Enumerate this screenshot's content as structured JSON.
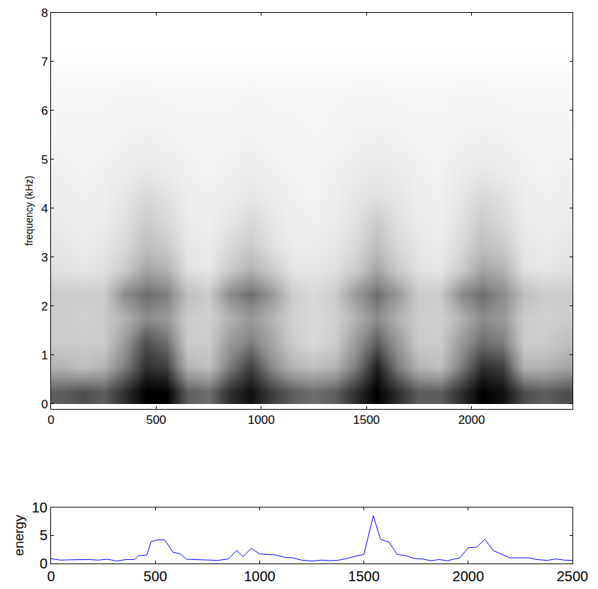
{
  "chart_data": [
    {
      "type": "heatmap",
      "ylabel": "frequency (kHz)",
      "x": [
        50,
        150,
        250,
        350,
        450,
        550,
        650,
        750,
        850,
        950,
        1050,
        1150,
        1250,
        1350,
        1450,
        1550,
        1650,
        1750,
        1850,
        1950,
        2050,
        2150,
        2250,
        2350,
        2450
      ],
      "y": [
        0.25,
        0.75,
        1.25,
        1.75,
        2.25,
        2.75,
        3.25,
        3.75,
        4.25,
        4.75,
        5.25,
        5.75,
        6.25,
        6.75,
        7.25,
        7.75
      ],
      "z": [
        [
          0.6,
          0.65,
          0.6,
          0.75,
          0.9,
          0.9,
          0.6,
          0.55,
          0.75,
          0.85,
          0.7,
          0.6,
          0.55,
          0.6,
          0.75,
          0.9,
          0.75,
          0.6,
          0.6,
          0.75,
          0.9,
          0.85,
          0.65,
          0.6,
          0.65
        ],
        [
          0.3,
          0.25,
          0.3,
          0.5,
          0.75,
          0.7,
          0.3,
          0.25,
          0.5,
          0.7,
          0.45,
          0.3,
          0.25,
          0.3,
          0.5,
          0.8,
          0.5,
          0.3,
          0.25,
          0.5,
          0.75,
          0.7,
          0.3,
          0.3,
          0.35
        ],
        [
          0.2,
          0.2,
          0.2,
          0.4,
          0.65,
          0.55,
          0.2,
          0.2,
          0.4,
          0.5,
          0.35,
          0.2,
          0.15,
          0.2,
          0.4,
          0.6,
          0.4,
          0.2,
          0.2,
          0.4,
          0.55,
          0.5,
          0.2,
          0.2,
          0.25
        ],
        [
          0.2,
          0.18,
          0.2,
          0.3,
          0.45,
          0.4,
          0.2,
          0.18,
          0.3,
          0.4,
          0.3,
          0.18,
          0.15,
          0.18,
          0.3,
          0.45,
          0.3,
          0.2,
          0.18,
          0.3,
          0.45,
          0.4,
          0.2,
          0.18,
          0.2
        ],
        [
          0.2,
          0.2,
          0.2,
          0.45,
          0.55,
          0.5,
          0.25,
          0.2,
          0.45,
          0.55,
          0.4,
          0.2,
          0.15,
          0.2,
          0.4,
          0.55,
          0.4,
          0.2,
          0.2,
          0.45,
          0.55,
          0.45,
          0.25,
          0.2,
          0.2
        ],
        [
          0.12,
          0.1,
          0.12,
          0.2,
          0.35,
          0.3,
          0.12,
          0.1,
          0.2,
          0.3,
          0.2,
          0.1,
          0.1,
          0.12,
          0.2,
          0.35,
          0.2,
          0.12,
          0.1,
          0.2,
          0.35,
          0.3,
          0.12,
          0.1,
          0.12
        ],
        [
          0.1,
          0.08,
          0.1,
          0.15,
          0.25,
          0.2,
          0.1,
          0.08,
          0.15,
          0.2,
          0.12,
          0.08,
          0.08,
          0.1,
          0.15,
          0.25,
          0.15,
          0.1,
          0.08,
          0.15,
          0.25,
          0.2,
          0.1,
          0.08,
          0.1
        ],
        [
          0.08,
          0.07,
          0.08,
          0.12,
          0.2,
          0.15,
          0.08,
          0.07,
          0.1,
          0.15,
          0.1,
          0.07,
          0.06,
          0.08,
          0.12,
          0.2,
          0.12,
          0.08,
          0.07,
          0.12,
          0.2,
          0.15,
          0.08,
          0.07,
          0.08
        ],
        [
          0.07,
          0.06,
          0.07,
          0.1,
          0.15,
          0.12,
          0.07,
          0.06,
          0.08,
          0.1,
          0.08,
          0.06,
          0.05,
          0.07,
          0.1,
          0.12,
          0.1,
          0.07,
          0.06,
          0.1,
          0.15,
          0.12,
          0.07,
          0.06,
          0.07
        ],
        [
          0.06,
          0.05,
          0.06,
          0.08,
          0.1,
          0.08,
          0.06,
          0.05,
          0.06,
          0.08,
          0.06,
          0.05,
          0.05,
          0.06,
          0.08,
          0.1,
          0.08,
          0.06,
          0.05,
          0.08,
          0.1,
          0.08,
          0.06,
          0.05,
          0.06
        ],
        [
          0.05,
          0.05,
          0.05,
          0.06,
          0.07,
          0.06,
          0.05,
          0.05,
          0.05,
          0.06,
          0.05,
          0.05,
          0.04,
          0.05,
          0.06,
          0.07,
          0.06,
          0.05,
          0.05,
          0.06,
          0.07,
          0.06,
          0.05,
          0.05,
          0.05
        ],
        [
          0.04,
          0.04,
          0.04,
          0.05,
          0.05,
          0.05,
          0.04,
          0.04,
          0.04,
          0.05,
          0.04,
          0.04,
          0.03,
          0.04,
          0.05,
          0.05,
          0.05,
          0.04,
          0.04,
          0.05,
          0.05,
          0.05,
          0.04,
          0.04,
          0.04
        ],
        [
          0.03,
          0.03,
          0.03,
          0.04,
          0.04,
          0.03,
          0.03,
          0.03,
          0.03,
          0.04,
          0.03,
          0.03,
          0.03,
          0.03,
          0.04,
          0.04,
          0.03,
          0.03,
          0.03,
          0.04,
          0.04,
          0.03,
          0.03,
          0.03,
          0.03
        ],
        [
          0.02,
          0.02,
          0.02,
          0.02,
          0.02,
          0.02,
          0.02,
          0.02,
          0.02,
          0.02,
          0.02,
          0.02,
          0.02,
          0.02,
          0.02,
          0.02,
          0.02,
          0.02,
          0.02,
          0.02,
          0.02,
          0.02,
          0.02,
          0.02,
          0.02
        ],
        [
          0,
          0,
          0,
          0,
          0,
          0,
          0,
          0,
          0,
          0,
          0,
          0,
          0,
          0,
          0,
          0,
          0,
          0,
          0,
          0,
          0,
          0,
          0,
          0,
          0
        ],
        [
          0,
          0,
          0,
          0,
          0,
          0,
          0,
          0,
          0,
          0,
          0,
          0,
          0,
          0,
          0,
          0,
          0,
          0,
          0,
          0,
          0,
          0,
          0,
          0,
          0
        ]
      ],
      "xlim": [
        0,
        2480
      ],
      "xticks": [
        0,
        500,
        1000,
        1500,
        2000
      ],
      "ylim": [
        -0.1,
        8
      ],
      "yticks": [
        0,
        1,
        2,
        3,
        4,
        5,
        6,
        7,
        8
      ]
    },
    {
      "type": "line",
      "ylabel": "energy",
      "color": "#0000ff",
      "x": [
        0,
        45,
        90,
        135,
        180,
        225,
        270,
        315,
        360,
        400,
        420,
        460,
        480,
        510,
        545,
        585,
        620,
        650,
        700,
        750,
        800,
        850,
        890,
        920,
        960,
        1000,
        1040,
        1080,
        1120,
        1160,
        1200,
        1250,
        1300,
        1340,
        1380,
        1420,
        1460,
        1500,
        1545,
        1580,
        1620,
        1660,
        1700,
        1740,
        1780,
        1820,
        1860,
        1900,
        1960,
        2000,
        2040,
        2080,
        2120,
        2160,
        2200,
        2250,
        2290,
        2330,
        2380,
        2420,
        2460,
        2500
      ],
      "values": [
        0.85,
        0.6,
        0.65,
        0.65,
        0.7,
        0.6,
        0.75,
        0.45,
        0.7,
        0.7,
        1.4,
        1.5,
        3.9,
        4.2,
        4.2,
        2.0,
        1.7,
        0.75,
        0.7,
        0.6,
        0.55,
        0.8,
        2.3,
        1.2,
        2.7,
        1.7,
        1.6,
        1.5,
        1.1,
        1.0,
        0.6,
        0.45,
        0.6,
        0.5,
        0.6,
        0.9,
        1.3,
        1.6,
        8.5,
        4.3,
        3.8,
        1.6,
        1.4,
        0.9,
        0.8,
        0.5,
        0.7,
        0.5,
        1.0,
        2.8,
        2.9,
        4.3,
        2.3,
        1.7,
        1.0,
        1.0,
        1.0,
        0.7,
        0.55,
        0.8,
        0.6,
        0.55
      ],
      "xlim": [
        0,
        2500
      ],
      "xticks": [
        0,
        500,
        1000,
        1500,
        2000,
        2500
      ],
      "ylim": [
        0,
        10
      ],
      "yticks": [
        0,
        5,
        10
      ]
    }
  ]
}
